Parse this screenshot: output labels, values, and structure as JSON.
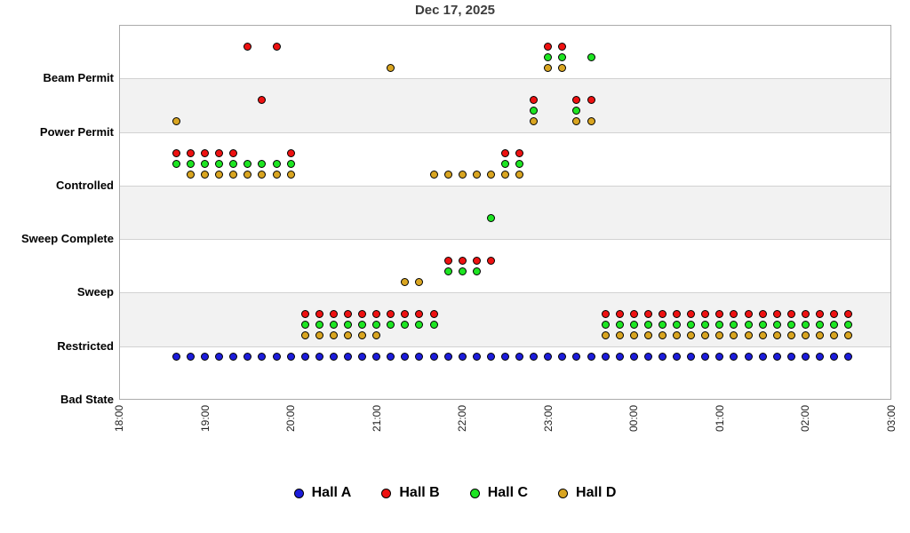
{
  "title": "Dec 17, 2025",
  "chart_data": {
    "type": "scatter",
    "title": "Dec 17, 2025",
    "description": "Hall PSS state vs time-of-day timeline; one dot per hall per 10-minute sample; each hall is drawn slightly below its state gridline by a fixed per-hall offset so overlapping halls remain visible.",
    "x_axis": {
      "tick_labels": [
        "18:00",
        "19:00",
        "20:00",
        "21:00",
        "22:00",
        "23:00",
        "00:00",
        "01:00",
        "02:00",
        "03:00"
      ],
      "start": "18:00",
      "end": "03:00",
      "tick_interval_minutes": 60,
      "tick_label_rotation_deg": -90
    },
    "y_axis": {
      "categories_bottom_to_top": [
        "Bad State",
        "Restricted",
        "Sweep",
        "Sweep Complete",
        "Controlled",
        "Power Permit",
        "Beam Permit"
      ],
      "state_values": {
        "Bad State": 0,
        "Restricted": 1,
        "Sweep": 2,
        "Sweep Complete": 3,
        "Controlled": 4,
        "Power Permit": 5,
        "Beam Permit": 6
      },
      "unlabeled_top_value": 7,
      "range": [
        0,
        7
      ],
      "alternating_band_fill": "#f2f2f2",
      "gridlines": true
    },
    "sampling_interval_minutes": 10,
    "sample_times": [
      "18:40",
      "18:50",
      "19:00",
      "19:10",
      "19:20",
      "19:30",
      "19:40",
      "19:50",
      "20:00",
      "20:10",
      "20:20",
      "20:30",
      "20:40",
      "20:50",
      "21:00",
      "21:10",
      "21:20",
      "21:30",
      "21:40",
      "21:50",
      "22:00",
      "22:10",
      "22:20",
      "22:30",
      "22:40",
      "22:50",
      "23:00",
      "23:10",
      "23:20",
      "23:30",
      "23:40",
      "23:50",
      "00:00",
      "00:10",
      "00:20",
      "00:30",
      "00:40",
      "00:50",
      "01:00",
      "01:10",
      "01:20",
      "01:30",
      "01:40",
      "01:50",
      "02:00",
      "02:10",
      "02:20",
      "02:30"
    ],
    "series": [
      {
        "name": "Hall A",
        "color": "#1c1cdb",
        "offset_below_state": 0.2,
        "state_values": [
          1,
          1,
          1,
          1,
          1,
          1,
          1,
          1,
          1,
          1,
          1,
          1,
          1,
          1,
          1,
          1,
          1,
          1,
          1,
          1,
          1,
          1,
          1,
          1,
          1,
          1,
          1,
          1,
          1,
          1,
          1,
          1,
          1,
          1,
          1,
          1,
          1,
          1,
          1,
          1,
          1,
          1,
          1,
          1,
          1,
          1,
          1,
          1
        ]
      },
      {
        "name": "Hall B",
        "color": "#ee1111",
        "offset_below_state": 0.4,
        "state_values": [
          5,
          5,
          5,
          5,
          5,
          7,
          6,
          7,
          5,
          2,
          2,
          2,
          2,
          2,
          2,
          2,
          2,
          2,
          2,
          3,
          3,
          3,
          3,
          5,
          5,
          6,
          7,
          7,
          6,
          6,
          2,
          2,
          2,
          2,
          2,
          2,
          2,
          2,
          2,
          2,
          2,
          2,
          2,
          2,
          2,
          2,
          2,
          2
        ]
      },
      {
        "name": "Hall C",
        "color": "#1de522",
        "offset_below_state": 0.6,
        "state_values": [
          5,
          5,
          5,
          5,
          5,
          5,
          5,
          5,
          5,
          2,
          2,
          2,
          2,
          2,
          2,
          2,
          2,
          2,
          2,
          3,
          3,
          3,
          4,
          5,
          5,
          6,
          7,
          7,
          6,
          7,
          2,
          2,
          2,
          2,
          2,
          2,
          2,
          2,
          2,
          2,
          2,
          2,
          2,
          2,
          2,
          2,
          2,
          2
        ]
      },
      {
        "name": "Hall D",
        "color": "#d9a521",
        "offset_below_state": 0.8,
        "state_values": [
          6,
          5,
          5,
          5,
          5,
          5,
          5,
          5,
          5,
          2,
          2,
          2,
          2,
          2,
          2,
          7,
          3,
          3,
          5,
          5,
          5,
          5,
          5,
          5,
          5,
          6,
          7,
          7,
          6,
          6,
          2,
          2,
          2,
          2,
          2,
          2,
          2,
          2,
          2,
          2,
          2,
          2,
          2,
          2,
          2,
          2,
          2,
          2
        ]
      }
    ],
    "legend": {
      "position": "bottom-center",
      "entries": [
        "Hall A",
        "Hall B",
        "Hall C",
        "Hall D"
      ],
      "marker_shape": "circle-black-outline"
    }
  }
}
